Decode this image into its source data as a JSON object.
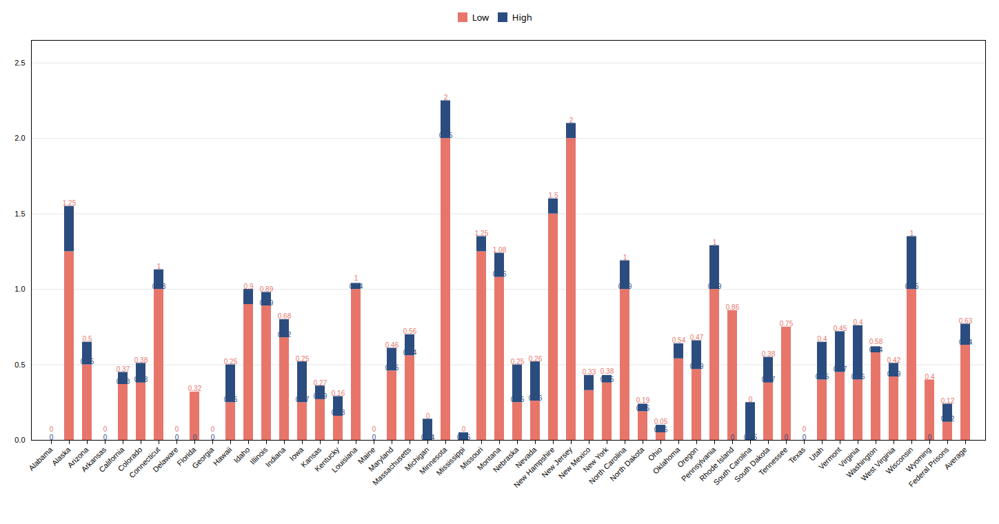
{
  "chart_data": {
    "type": "bar",
    "stacked": true,
    "data_labels": true,
    "grid": true,
    "legend": "top",
    "categories": [
      "Alabama",
      "Alaska",
      "Arizona",
      "Arkansas",
      "California",
      "Colorado",
      "Connecticut",
      "Delaware",
      "Florida",
      "Georgia",
      "Hawaii",
      "Idaho",
      "Illinois",
      "Indiana",
      "Iowa",
      "Kansas",
      "Kentucky",
      "Louisiana",
      "Maine",
      "Maryland",
      "Massachusetts",
      "Michigan",
      "Minnesota",
      "Mississippi",
      "Missouri",
      "Montana",
      "Nebraska",
      "Nevada",
      "New Hampshire",
      "New Jersey",
      "New Mexico",
      "New York",
      "North Carolina",
      "North Dakota",
      "Ohio",
      "Oklahoma",
      "Oregon",
      "Pennsylvania",
      "Rhode Island",
      "South Carolina",
      "South Dakota",
      "Tennessee",
      "Texas",
      "Utah",
      "Vermont",
      "Virginia",
      "Washington",
      "West Virginia",
      "Wisconsin",
      "Wyoming",
      "Federal Prisons",
      "Average"
    ],
    "series": [
      {
        "name": "Low",
        "color": "#E8756A",
        "values": [
          0,
          1.25,
          0.5,
          0,
          0.37,
          0.38,
          1,
          0,
          0.32,
          0,
          0.25,
          0.9,
          0.89,
          0.68,
          0.25,
          0.27,
          0.16,
          1,
          0,
          0.46,
          0.56,
          0,
          2,
          0,
          1.25,
          1.08,
          0.25,
          0.26,
          1.5,
          2,
          0.33,
          0.38,
          1,
          0.19,
          0.05,
          0.54,
          0.47,
          1,
          0.86,
          0,
          0.38,
          0.75,
          0,
          0.4,
          0.45,
          0.4,
          0.58,
          0.42,
          1,
          0.4,
          0.12,
          0.63
        ]
      },
      {
        "name": "High",
        "color": "#2B4C7E",
        "values": [
          0,
          0.3,
          0.15,
          0,
          0.08,
          0.13,
          0.13,
          0,
          0,
          0,
          0.25,
          0.1,
          0.09,
          0.12,
          0.27,
          0.09,
          0.13,
          0.04,
          0,
          0.15,
          0.14,
          0.14,
          0.25,
          0.05,
          0.1,
          0.16,
          0.25,
          0.26,
          0.1,
          0.1,
          0.1,
          0.05,
          0.19,
          0.05,
          0.05,
          0.1,
          0.19,
          0.29,
          0,
          0.25,
          0.17,
          0,
          0,
          0.25,
          0.27,
          0.36,
          0.04,
          0.09,
          0.35,
          0,
          0.12,
          0.14
        ]
      }
    ],
    "ylim": [
      0,
      2.65
    ],
    "yticks": [
      {
        "value": 0.0,
        "label": "0.0"
      },
      0.5,
      {
        "value": 1.0,
        "label": "1.0"
      },
      1.5,
      {
        "value": 2.0,
        "label": "2.0"
      },
      2.5
    ]
  }
}
